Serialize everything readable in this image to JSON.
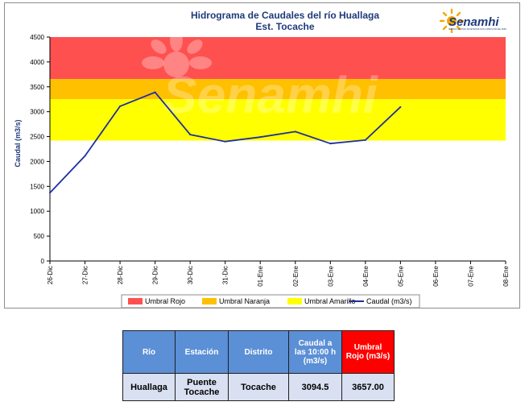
{
  "chart_data": {
    "type": "line",
    "title": "Hidrograma de Caudales del río Huallaga",
    "subtitle": "Est. Tocache",
    "ylabel": "Caudal (m3/s)",
    "xlabel": "",
    "ylim": [
      0,
      4500
    ],
    "yticks": [
      0,
      500,
      1000,
      1500,
      2000,
      2500,
      3000,
      3500,
      4000,
      4500
    ],
    "categories": [
      "26-Dic",
      "27-Dic",
      "28-Dic",
      "29-Dic",
      "30-Dic",
      "31-Dic",
      "01-Ene",
      "02-Ene",
      "03-Ene",
      "04-Ene",
      "05-Ene",
      "06-Ene",
      "07-Ene",
      "08-Ene"
    ],
    "series": [
      {
        "name": "Caudal (m3/s)",
        "color": "#1f2fa0",
        "values": [
          1370,
          2110,
          3110,
          3390,
          2540,
          2400,
          2490,
          2600,
          2360,
          2430,
          3094.5,
          null,
          null,
          null
        ]
      }
    ],
    "thresholds": [
      {
        "name": "Umbral Rojo",
        "color": "#ff5050",
        "from": 3657,
        "to": 4500
      },
      {
        "name": "Umbral Naranja",
        "color": "#ffc000",
        "from": 3250,
        "to": 3657
      },
      {
        "name": "Umbral Amarillo",
        "color": "#ffff00",
        "from": 2420,
        "to": 3250
      }
    ],
    "legend_position": "bottom",
    "grid": false
  },
  "logo": {
    "text": "Senamhi",
    "subtitle": "SERVICIO NACIONAL DE METEOROLOGÍA E HIDROLOGÍA DEL PERÚ"
  },
  "watermark": "Senamhi",
  "table": {
    "headers": [
      "Río",
      "Estación",
      "Distrito",
      "Caudal a las 10:00 h (m3/s)",
      "Umbral Rojo (m3/s)"
    ],
    "row": [
      "Huallaga",
      "Puente Tocache",
      "Tocache",
      "3094.5",
      "3657.00"
    ]
  }
}
